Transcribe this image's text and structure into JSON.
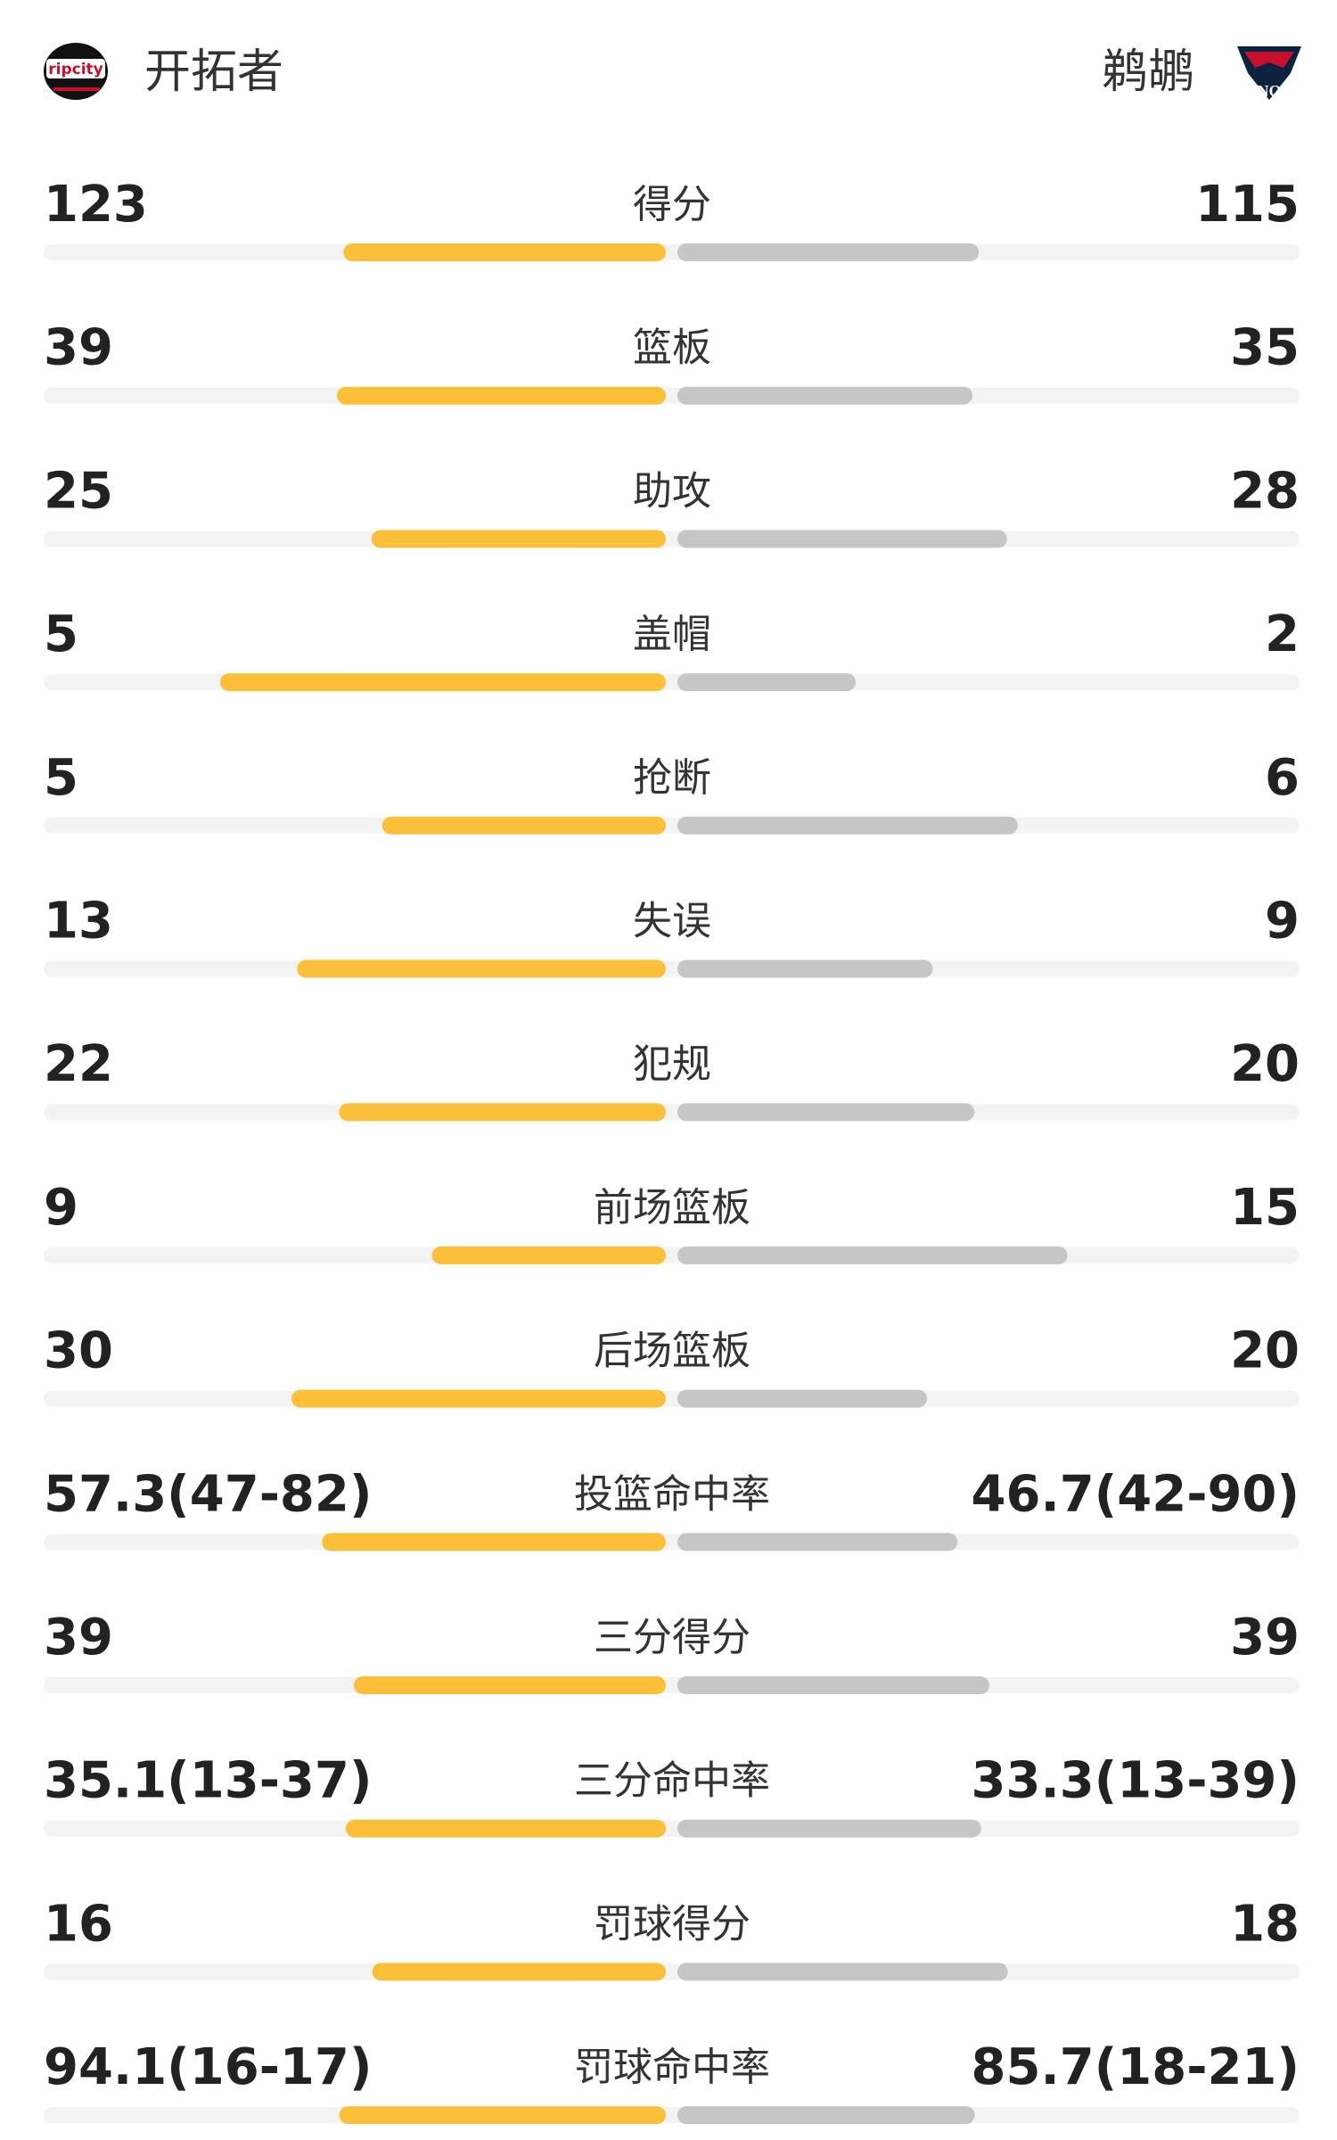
{
  "header": {
    "home_team": "开拓者",
    "away_team": "鹈鹕"
  },
  "home_color": "#fbbf3a",
  "away_color": "#c6c6c6",
  "rows": [
    {
      "label": "得分",
      "home": 123,
      "away": 115
    },
    {
      "label": "篮板",
      "home": 39,
      "away": 35
    },
    {
      "label": "助攻",
      "home": 25,
      "away": 28
    },
    {
      "label": "盖帽",
      "home": 5,
      "away": 2
    },
    {
      "label": "抢断",
      "home": 5,
      "away": 6
    },
    {
      "label": "失误",
      "home": 13,
      "away": 9
    },
    {
      "label": "犯规",
      "home": 22,
      "away": 20
    },
    {
      "label": "前场篮板",
      "home": 9,
      "away": 15
    },
    {
      "label": "后场篮板",
      "home": 30,
      "away": 20
    },
    {
      "label": "投篮命中率",
      "home": 57.3,
      "home_label": "57.3(47-82)",
      "away": 46.7,
      "away_label": "46.7(42-90)"
    },
    {
      "label": "三分得分",
      "home": 39,
      "away": 39
    },
    {
      "label": "三分命中率",
      "home": 35.1,
      "home_label": "35.1(13-37)",
      "away": 33.3,
      "away_label": "33.3(13-39)"
    },
    {
      "label": "罚球得分",
      "home": 16,
      "away": 18
    },
    {
      "label": "罚球命中率",
      "home": 94.1,
      "home_label": "94.1(16-17)",
      "away": 85.7,
      "away_label": "85.7(18-21)"
    }
  ]
}
